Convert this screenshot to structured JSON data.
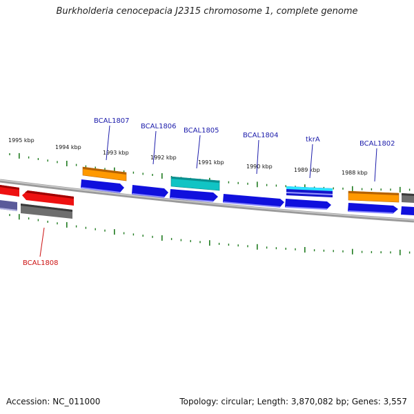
{
  "title": "Burkholderia cenocepacia J2315 chromosome 1, complete genome",
  "footer": {
    "accession": "Accession: NC_011000",
    "topology": "Topology: circular; Length: 3,870,082 bp; Genes: 3,557"
  },
  "colors": {
    "backbone": "#8a8a8a",
    "tick": "#1e7a1e",
    "label_forward": "#1a1aaa",
    "label_reverse": "#cc1111",
    "cds_blue": "#1010dd",
    "cds_orange": "#ff9900",
    "cds_red": "#ee1111",
    "cds_cyan": "#11c4c4",
    "cds_gray": "#707070",
    "cds_slate": "#5a5a9a"
  },
  "ticks": [
    "1995 kbp",
    "1994 kbp",
    "1993 kbp",
    "1992 kbp",
    "1991 kbp",
    "1990 kbp",
    "1989 kbp",
    "1988 kbp"
  ],
  "gene_labels": [
    {
      "text": "BCAL1807",
      "strand": "forward"
    },
    {
      "text": "BCAL1806",
      "strand": "forward"
    },
    {
      "text": "BCAL1805",
      "strand": "forward"
    },
    {
      "text": "BCAL1804",
      "strand": "forward"
    },
    {
      "text": "tkrA",
      "strand": "forward"
    },
    {
      "text": "BCAL1802",
      "strand": "forward"
    },
    {
      "text": "BCAL1808",
      "strand": "reverse"
    }
  ]
}
